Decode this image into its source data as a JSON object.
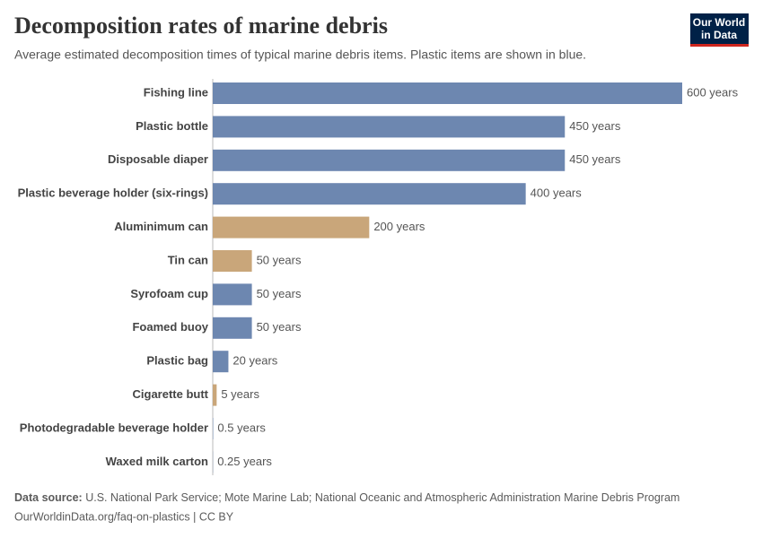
{
  "chart_data": {
    "type": "hbar",
    "title": "Decomposition rates of marine debris",
    "subtitle": "Average estimated decomposition times of typical marine debris items. Plastic items are shown in blue.",
    "categories": [
      "Fishing line",
      "Plastic bottle",
      "Disposable diaper",
      "Plastic beverage holder (six-rings)",
      "Aluminimum can",
      "Tin can",
      "Syrofoam cup",
      "Foamed buoy",
      "Plastic bag",
      "Cigarette butt",
      "Photodegradable beverage holder",
      "Waxed milk carton"
    ],
    "values": [
      600,
      450,
      450,
      400,
      200,
      50,
      50,
      50,
      20,
      5,
      0.5,
      0.25
    ],
    "value_labels": [
      "600 years",
      "450 years",
      "450 years",
      "400 years",
      "200 years",
      "50 years",
      "50 years",
      "50 years",
      "20 years",
      "5 years",
      "0.5 years",
      "0.25 years"
    ],
    "colors": [
      "#6d87b0",
      "#6d87b0",
      "#6d87b0",
      "#6d87b0",
      "#c9a67a",
      "#c9a67a",
      "#6d87b0",
      "#6d87b0",
      "#6d87b0",
      "#c9a67a",
      "#6d87b0",
      "#6d87b0"
    ],
    "source_label": "Data source:",
    "source": "U.S. National Park Service; Mote Marine Lab; National Oceanic and Atmospheric Administration Marine Debris Program",
    "footer": "OurWorldinData.org/faq-on-plastics | CC BY",
    "logo": [
      "Our World",
      "in Data"
    ]
  }
}
